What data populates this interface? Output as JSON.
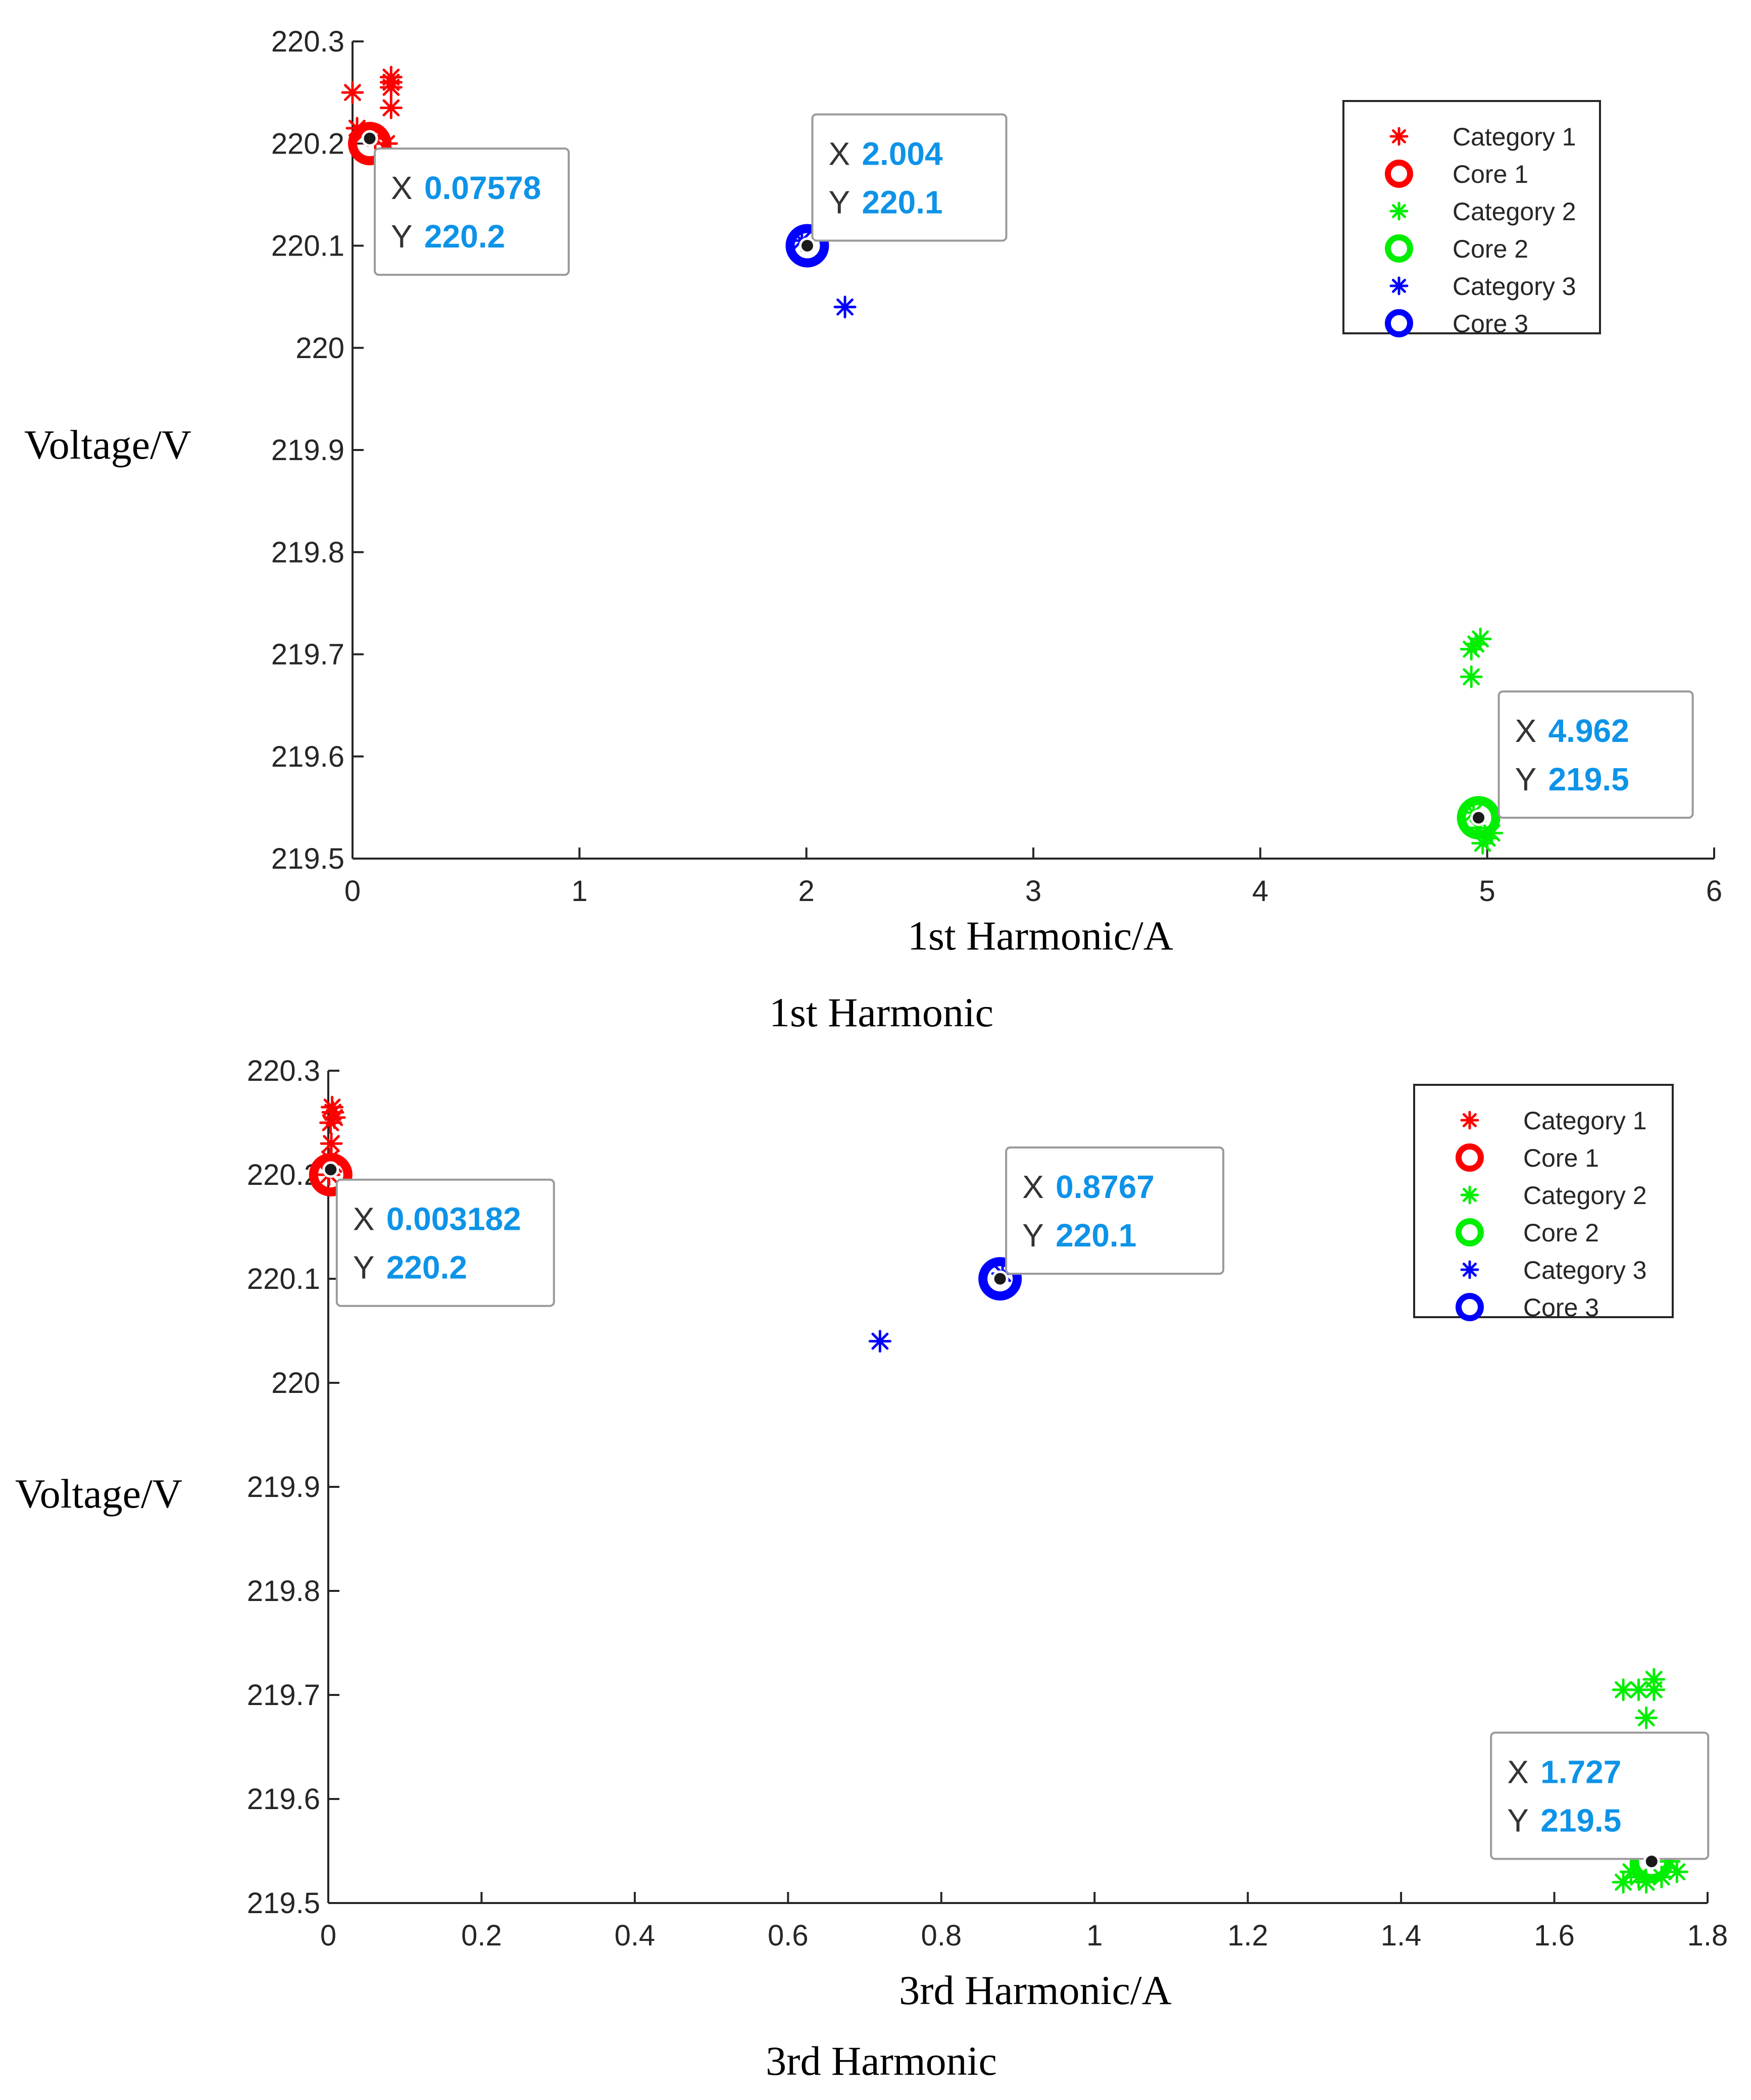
{
  "chart_data": [
    {
      "type": "scatter",
      "title": "1st Harmonic",
      "xlabel": "1st Harmonic/A",
      "ylabel": "Voltage/V",
      "xlim": [
        0,
        6
      ],
      "ylim": [
        219.5,
        220.3
      ],
      "xticks": [
        "0",
        "1",
        "2",
        "3",
        "4",
        "5",
        "6"
      ],
      "yticks": [
        "219.5",
        "219.6",
        "219.7",
        "219.8",
        "219.9",
        "220",
        "220.1",
        "220.2",
        "220.3"
      ],
      "series": [
        {
          "name": "Category 1",
          "marker": "star",
          "color": "#ff0000",
          "points": [
            [
              0.0,
              220.25
            ],
            [
              0.17,
              220.265
            ],
            [
              0.17,
              220.255
            ],
            [
              0.17,
              220.26
            ],
            [
              0.17,
              220.235
            ],
            [
              0.02,
              220.215
            ],
            [
              0.05,
              220.21
            ],
            [
              0.1,
              220.205
            ],
            [
              0.15,
              220.2
            ]
          ]
        },
        {
          "name": "Core 1",
          "marker": "circle",
          "color": "#ff0000",
          "points": [
            [
              0.07578,
              220.2
            ]
          ]
        },
        {
          "name": "Category 2",
          "marker": "star",
          "color": "#00ee00",
          "points": [
            [
              4.93,
              219.705
            ],
            [
              4.97,
              219.715
            ],
            [
              4.95,
              219.71
            ],
            [
              4.93,
              219.678
            ],
            [
              4.96,
              219.53
            ],
            [
              5.0,
              219.52
            ],
            [
              4.98,
              219.515
            ],
            [
              5.02,
              219.525
            ],
            [
              4.94,
              219.545
            ]
          ]
        },
        {
          "name": "Core 2",
          "marker": "circle",
          "color": "#00ee00",
          "points": [
            [
              4.962,
              219.54
            ]
          ]
        },
        {
          "name": "Category 3",
          "marker": "star",
          "color": "#0000ff",
          "points": [
            [
              1.98,
              220.105
            ],
            [
              2.17,
              220.04
            ]
          ]
        },
        {
          "name": "Core 3",
          "marker": "circle",
          "color": "#0000ff",
          "points": [
            [
              2.004,
              220.1
            ]
          ]
        }
      ],
      "datatips": [
        {
          "x_label": "X",
          "x_value": "0.07578",
          "y_label": "Y",
          "y_value": "220.2",
          "at": [
            0.07578,
            220.205
          ]
        },
        {
          "x_label": "X",
          "x_value": "2.004",
          "y_label": "Y",
          "y_value": "220.1",
          "at": [
            2.004,
            220.1
          ]
        },
        {
          "x_label": "X",
          "x_value": "4.962",
          "y_label": "Y",
          "y_value": "219.5",
          "at": [
            4.962,
            219.54
          ]
        }
      ],
      "legend": {
        "placement": "top-right",
        "entries": [
          "Category 1",
          "Core 1",
          "Category 2",
          "Core 2",
          "Category 3",
          "Core 3"
        ]
      }
    },
    {
      "type": "scatter",
      "title": "3rd Harmonic",
      "xlabel": "3rd Harmonic/A",
      "ylabel": "Voltage/V",
      "xlim": [
        0,
        1.8
      ],
      "ylim": [
        219.5,
        220.3
      ],
      "xticks": [
        "0",
        "0.2",
        "0.4",
        "0.6",
        "0.8",
        "1",
        "1.2",
        "1.4",
        "1.6",
        "1.8"
      ],
      "yticks": [
        "219.5",
        "219.6",
        "219.7",
        "219.8",
        "219.9",
        "220",
        "220.1",
        "220.2",
        "220.3"
      ],
      "series": [
        {
          "name": "Category 1",
          "marker": "star",
          "color": "#ff0000",
          "points": [
            [
              0.005,
              220.265
            ],
            [
              0.008,
              220.255
            ],
            [
              0.003,
              220.25
            ],
            [
              0.006,
              220.26
            ],
            [
              0.004,
              220.23
            ],
            [
              0.002,
              220.215
            ],
            [
              0.007,
              220.21
            ],
            [
              0.001,
              220.2
            ]
          ]
        },
        {
          "name": "Core 1",
          "marker": "circle",
          "color": "#ff0000",
          "points": [
            [
              0.003182,
              220.2
            ]
          ]
        },
        {
          "name": "Category 2",
          "marker": "star",
          "color": "#00ee00",
          "points": [
            [
              1.69,
              219.705
            ],
            [
              1.71,
              219.705
            ],
            [
              1.73,
              219.715
            ],
            [
              1.73,
              219.705
            ],
            [
              1.72,
              219.678
            ],
            [
              1.7,
              219.53
            ],
            [
              1.72,
              219.52
            ],
            [
              1.74,
              219.525
            ],
            [
              1.75,
              219.54
            ],
            [
              1.69,
              219.52
            ],
            [
              1.76,
              219.53
            ],
            [
              1.71,
              219.525
            ]
          ]
        },
        {
          "name": "Core 2",
          "marker": "circle",
          "color": "#00ee00",
          "points": [
            [
              1.727,
              219.54
            ]
          ]
        },
        {
          "name": "Category 3",
          "marker": "star",
          "color": "#0000ff",
          "points": [
            [
              0.72,
              220.04
            ],
            [
              0.88,
              220.105
            ]
          ]
        },
        {
          "name": "Core 3",
          "marker": "circle",
          "color": "#0000ff",
          "points": [
            [
              0.8767,
              220.1
            ]
          ]
        }
      ],
      "datatips": [
        {
          "x_label": "X",
          "x_value": "0.003182",
          "y_label": "Y",
          "y_value": "220.2",
          "at": [
            0.003182,
            220.205
          ]
        },
        {
          "x_label": "X",
          "x_value": "0.8767",
          "y_label": "Y",
          "y_value": "220.1",
          "at": [
            0.8767,
            220.1
          ]
        },
        {
          "x_label": "X",
          "x_value": "1.727",
          "y_label": "Y",
          "y_value": "219.5",
          "at": [
            1.727,
            219.54
          ]
        }
      ],
      "legend": {
        "placement": "top-right",
        "entries": [
          "Category 1",
          "Core 1",
          "Category 2",
          "Core 2",
          "Category 3",
          "Core 3"
        ]
      }
    }
  ]
}
